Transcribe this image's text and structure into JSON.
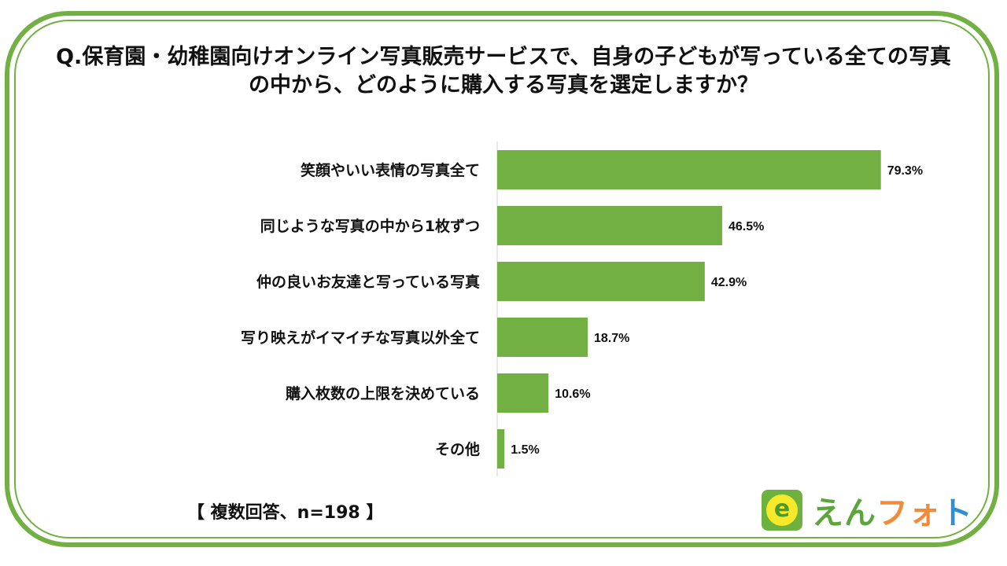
{
  "chart_data": {
    "type": "bar",
    "orientation": "horizontal",
    "title": "Q.保育園・幼稚園向けオンライン写真販売サービスで、自身の子どもが写っている全ての写真の中から、どのように購入する写真を選定しますか？",
    "categories": [
      "笑顔やいい表情の写真全て",
      "同じような写真の中から1枚ずつ",
      "仲の良いお友達と写っている写真",
      "写り映えがイマイチな写真以外全て",
      "購入枚数の上限を決めている",
      "その他"
    ],
    "values": [
      79.3,
      46.5,
      42.9,
      18.7,
      10.6,
      1.5
    ],
    "value_labels": [
      "79.3%",
      "46.5%",
      "42.9%",
      "18.7%",
      "10.6%",
      "1.5%"
    ],
    "xlim": [
      0,
      100
    ],
    "bar_color": "#72b043",
    "grid": false
  },
  "note": "【 複数回答、n=198 】",
  "logo": {
    "icon": "e-logo-icon",
    "icon_letter": "e",
    "text_parts": [
      {
        "text": "えん",
        "color": "#5aa63a"
      },
      {
        "text": "フォ",
        "color": "#f28a38"
      },
      {
        "text": "ト",
        "color": "#2f8fd5"
      }
    ]
  }
}
